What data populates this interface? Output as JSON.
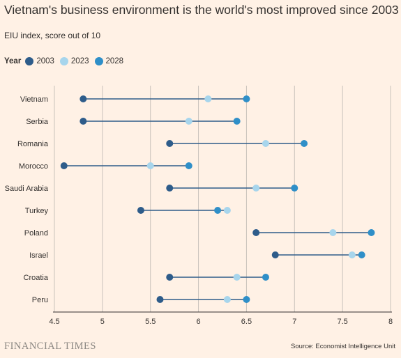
{
  "title": "Vietnam's business environment is the world's most improved since 2003",
  "subtitle": "EIU index, score out of 10",
  "legend": {
    "title": "Year",
    "items": [
      {
        "label": "2003",
        "color": "#2e5c8a"
      },
      {
        "label": "2023",
        "color": "#a7d5ec"
      },
      {
        "label": "2028",
        "color": "#2f8fc8"
      }
    ]
  },
  "footer": {
    "brand": "FINANCIAL TIMES",
    "source": "Source: Economist Intelligence Unit"
  },
  "chart_data": {
    "type": "dumbbell",
    "title": "Vietnam's business environment is the world's most improved since 2003",
    "subtitle": "EIU index, score out of 10",
    "xlim": [
      4.5,
      8
    ],
    "xticks": [
      "4.5",
      "5",
      "5.5",
      "6",
      "6.5",
      "7",
      "7.5",
      "8"
    ],
    "xtick_values": [
      4.5,
      5,
      5.5,
      6,
      6.5,
      7,
      7.5,
      8
    ],
    "grid": "vertical",
    "legend_position": "top-left",
    "categories": [
      "Vietnam",
      "Serbia",
      "Romania",
      "Morocco",
      "Saudi Arabia",
      "Turkey",
      "Poland",
      "Israel",
      "Croatia",
      "Peru"
    ],
    "series": [
      {
        "name": "2003",
        "color": "#2e5c8a",
        "values": [
          4.8,
          4.8,
          5.7,
          4.6,
          5.7,
          5.4,
          6.6,
          6.8,
          5.7,
          5.6
        ]
      },
      {
        "name": "2023",
        "color": "#a7d5ec",
        "values": [
          6.1,
          5.9,
          6.7,
          5.5,
          6.6,
          6.3,
          7.4,
          7.6,
          6.4,
          6.3
        ]
      },
      {
        "name": "2028",
        "color": "#2f8fc8",
        "values": [
          6.5,
          6.4,
          7.1,
          5.9,
          7.0,
          6.2,
          7.8,
          7.7,
          6.7,
          6.5
        ]
      }
    ],
    "line_color": "#2e5c8a"
  }
}
